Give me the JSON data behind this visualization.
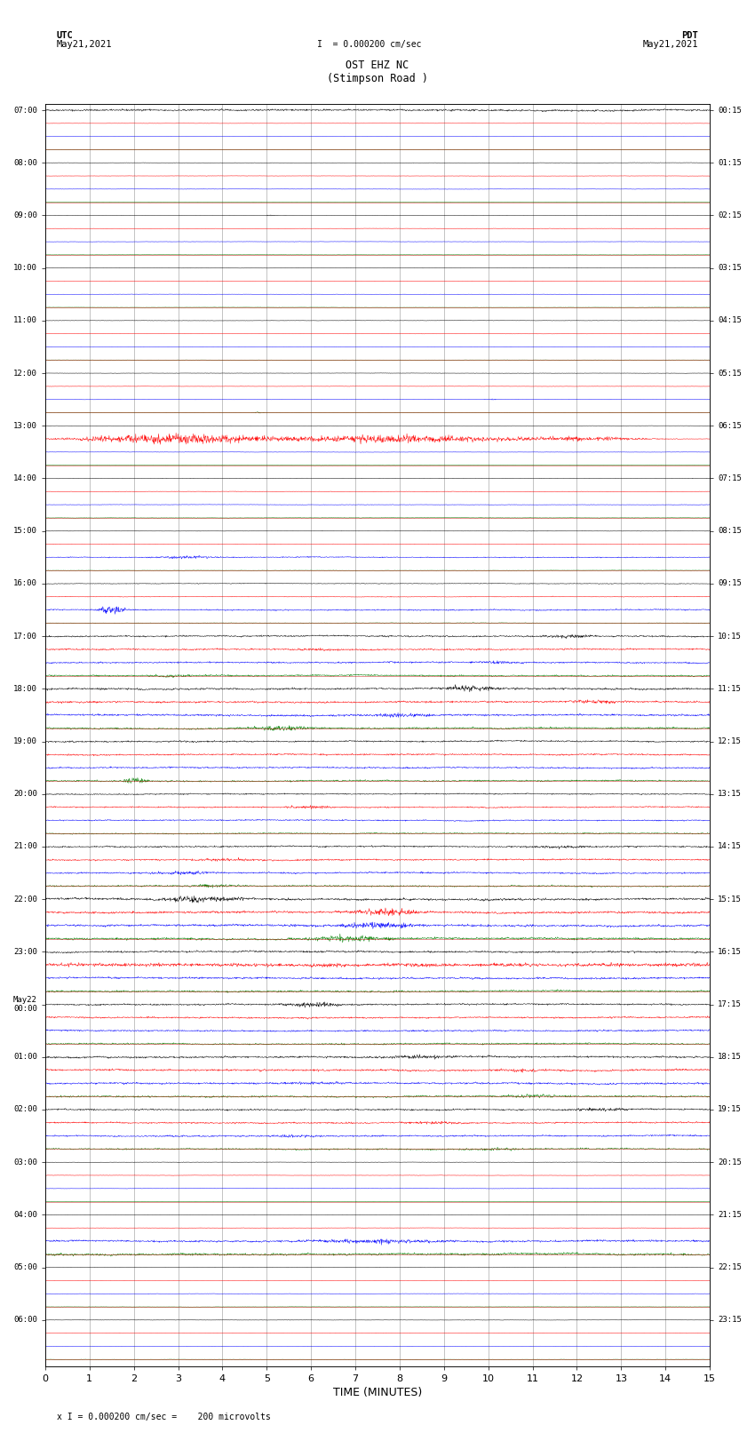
{
  "title_line1": "OST EHZ NC",
  "title_line2": "(Stimpson Road )",
  "scale_label": "I  = 0.000200 cm/sec",
  "bottom_label": "x I = 0.000200 cm/sec =    200 microvolts",
  "left_header": "UTC\nMay21,2021",
  "right_header": "PDT\nMay21,2021",
  "xlabel": "TIME (MINUTES)",
  "utc_times_labeled": [
    "07:00",
    "08:00",
    "09:00",
    "10:00",
    "11:00",
    "12:00",
    "13:00",
    "14:00",
    "15:00",
    "16:00",
    "17:00",
    "18:00",
    "19:00",
    "20:00",
    "21:00",
    "22:00",
    "23:00",
    "May22\n00:00",
    "01:00",
    "02:00",
    "03:00",
    "04:00",
    "05:00",
    "06:00"
  ],
  "pdt_times_labeled": [
    "00:15",
    "01:15",
    "02:15",
    "03:15",
    "04:15",
    "05:15",
    "06:15",
    "07:15",
    "08:15",
    "09:15",
    "10:15",
    "11:15",
    "12:15",
    "13:15",
    "14:15",
    "15:15",
    "16:15",
    "17:15",
    "18:15",
    "19:15",
    "20:15",
    "21:15",
    "22:15",
    "23:15"
  ],
  "num_hours": 24,
  "traces_per_hour": 4,
  "minutes": 15,
  "colors_cycle": [
    "black",
    "red",
    "blue",
    "green"
  ],
  "bg_color": "white",
  "grid_color": "#888888",
  "red_sep_color": "#cc0000",
  "amplitude_scale": 0.42,
  "noise_base": 0.04,
  "seed": 42
}
